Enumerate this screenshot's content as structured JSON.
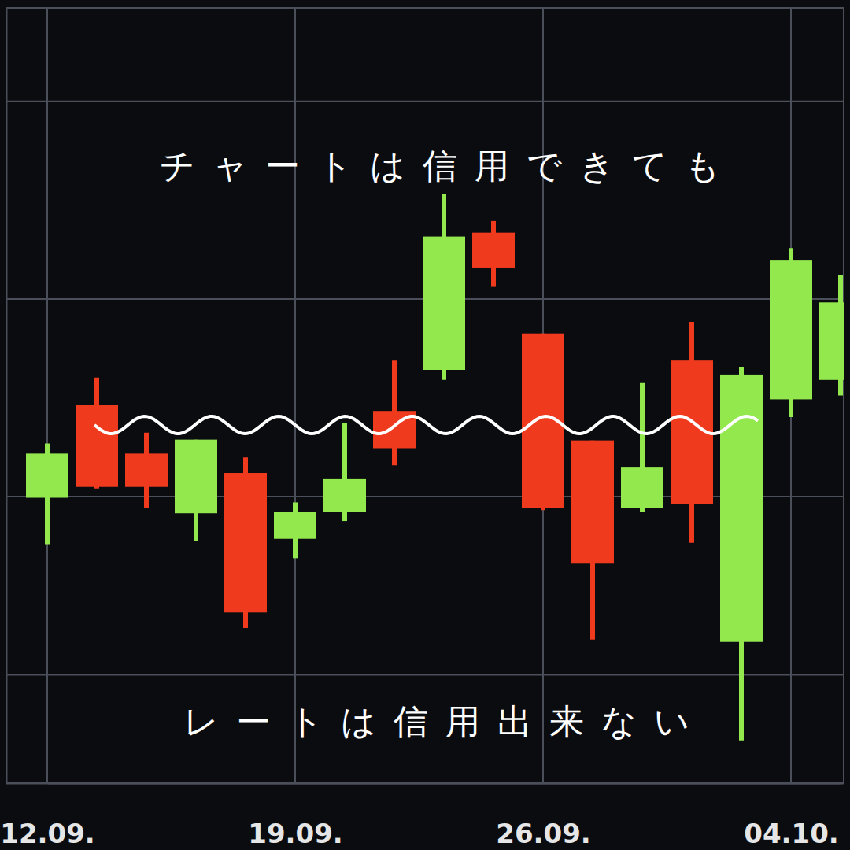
{
  "chart_data": {
    "type": "candlestick",
    "title": "チャートは信用できても",
    "annotations": [
      "レートは信用出来ない"
    ],
    "categories": [
      "12.09.",
      null,
      null,
      null,
      null,
      "19.09.",
      null,
      null,
      null,
      null,
      "26.09.",
      null,
      null,
      null,
      null,
      "04.10.",
      null
    ],
    "open": [
      36.8,
      48.8,
      42.5,
      34.8,
      40,
      31.5,
      35,
      48,
      53.3,
      71,
      58,
      44.2,
      35.5,
      54.5,
      18.2,
      49.5,
      52
    ],
    "high": [
      43.8,
      52.3,
      45.2,
      44.3,
      42,
      36.2,
      46.5,
      54.5,
      76,
      72.5,
      58,
      44.2,
      51.7,
      59.5,
      53.7,
      69,
      65.5
    ],
    "low": [
      30.8,
      38,
      35.5,
      31.2,
      20,
      29,
      33.8,
      41,
      52,
      64,
      35.2,
      18.5,
      35,
      31,
      5.5,
      47.2,
      50
    ],
    "close": [
      42.5,
      38.2,
      38.2,
      44.3,
      22,
      35,
      39.3,
      43.2,
      70.5,
      66.5,
      35.5,
      28.4,
      40.8,
      36,
      52.7,
      67.5,
      62
    ],
    "colors": [
      "#93e84e",
      "#f03a1e",
      "#f03a1e",
      "#93e84e",
      "#f03a1e",
      "#93e84e",
      "#93e84e",
      "#f03a1e",
      "#93e84e",
      "#f03a1e",
      "#f03a1e",
      "#f03a1e",
      "#93e84e",
      "#f03a1e",
      "#93e84e",
      "#93e84e",
      "#93e84e"
    ],
    "ylim": [
      0,
      100
    ],
    "yticks": [
      14,
      37,
      62.5,
      88
    ],
    "grid": true,
    "tick_labels": "x"
  }
}
